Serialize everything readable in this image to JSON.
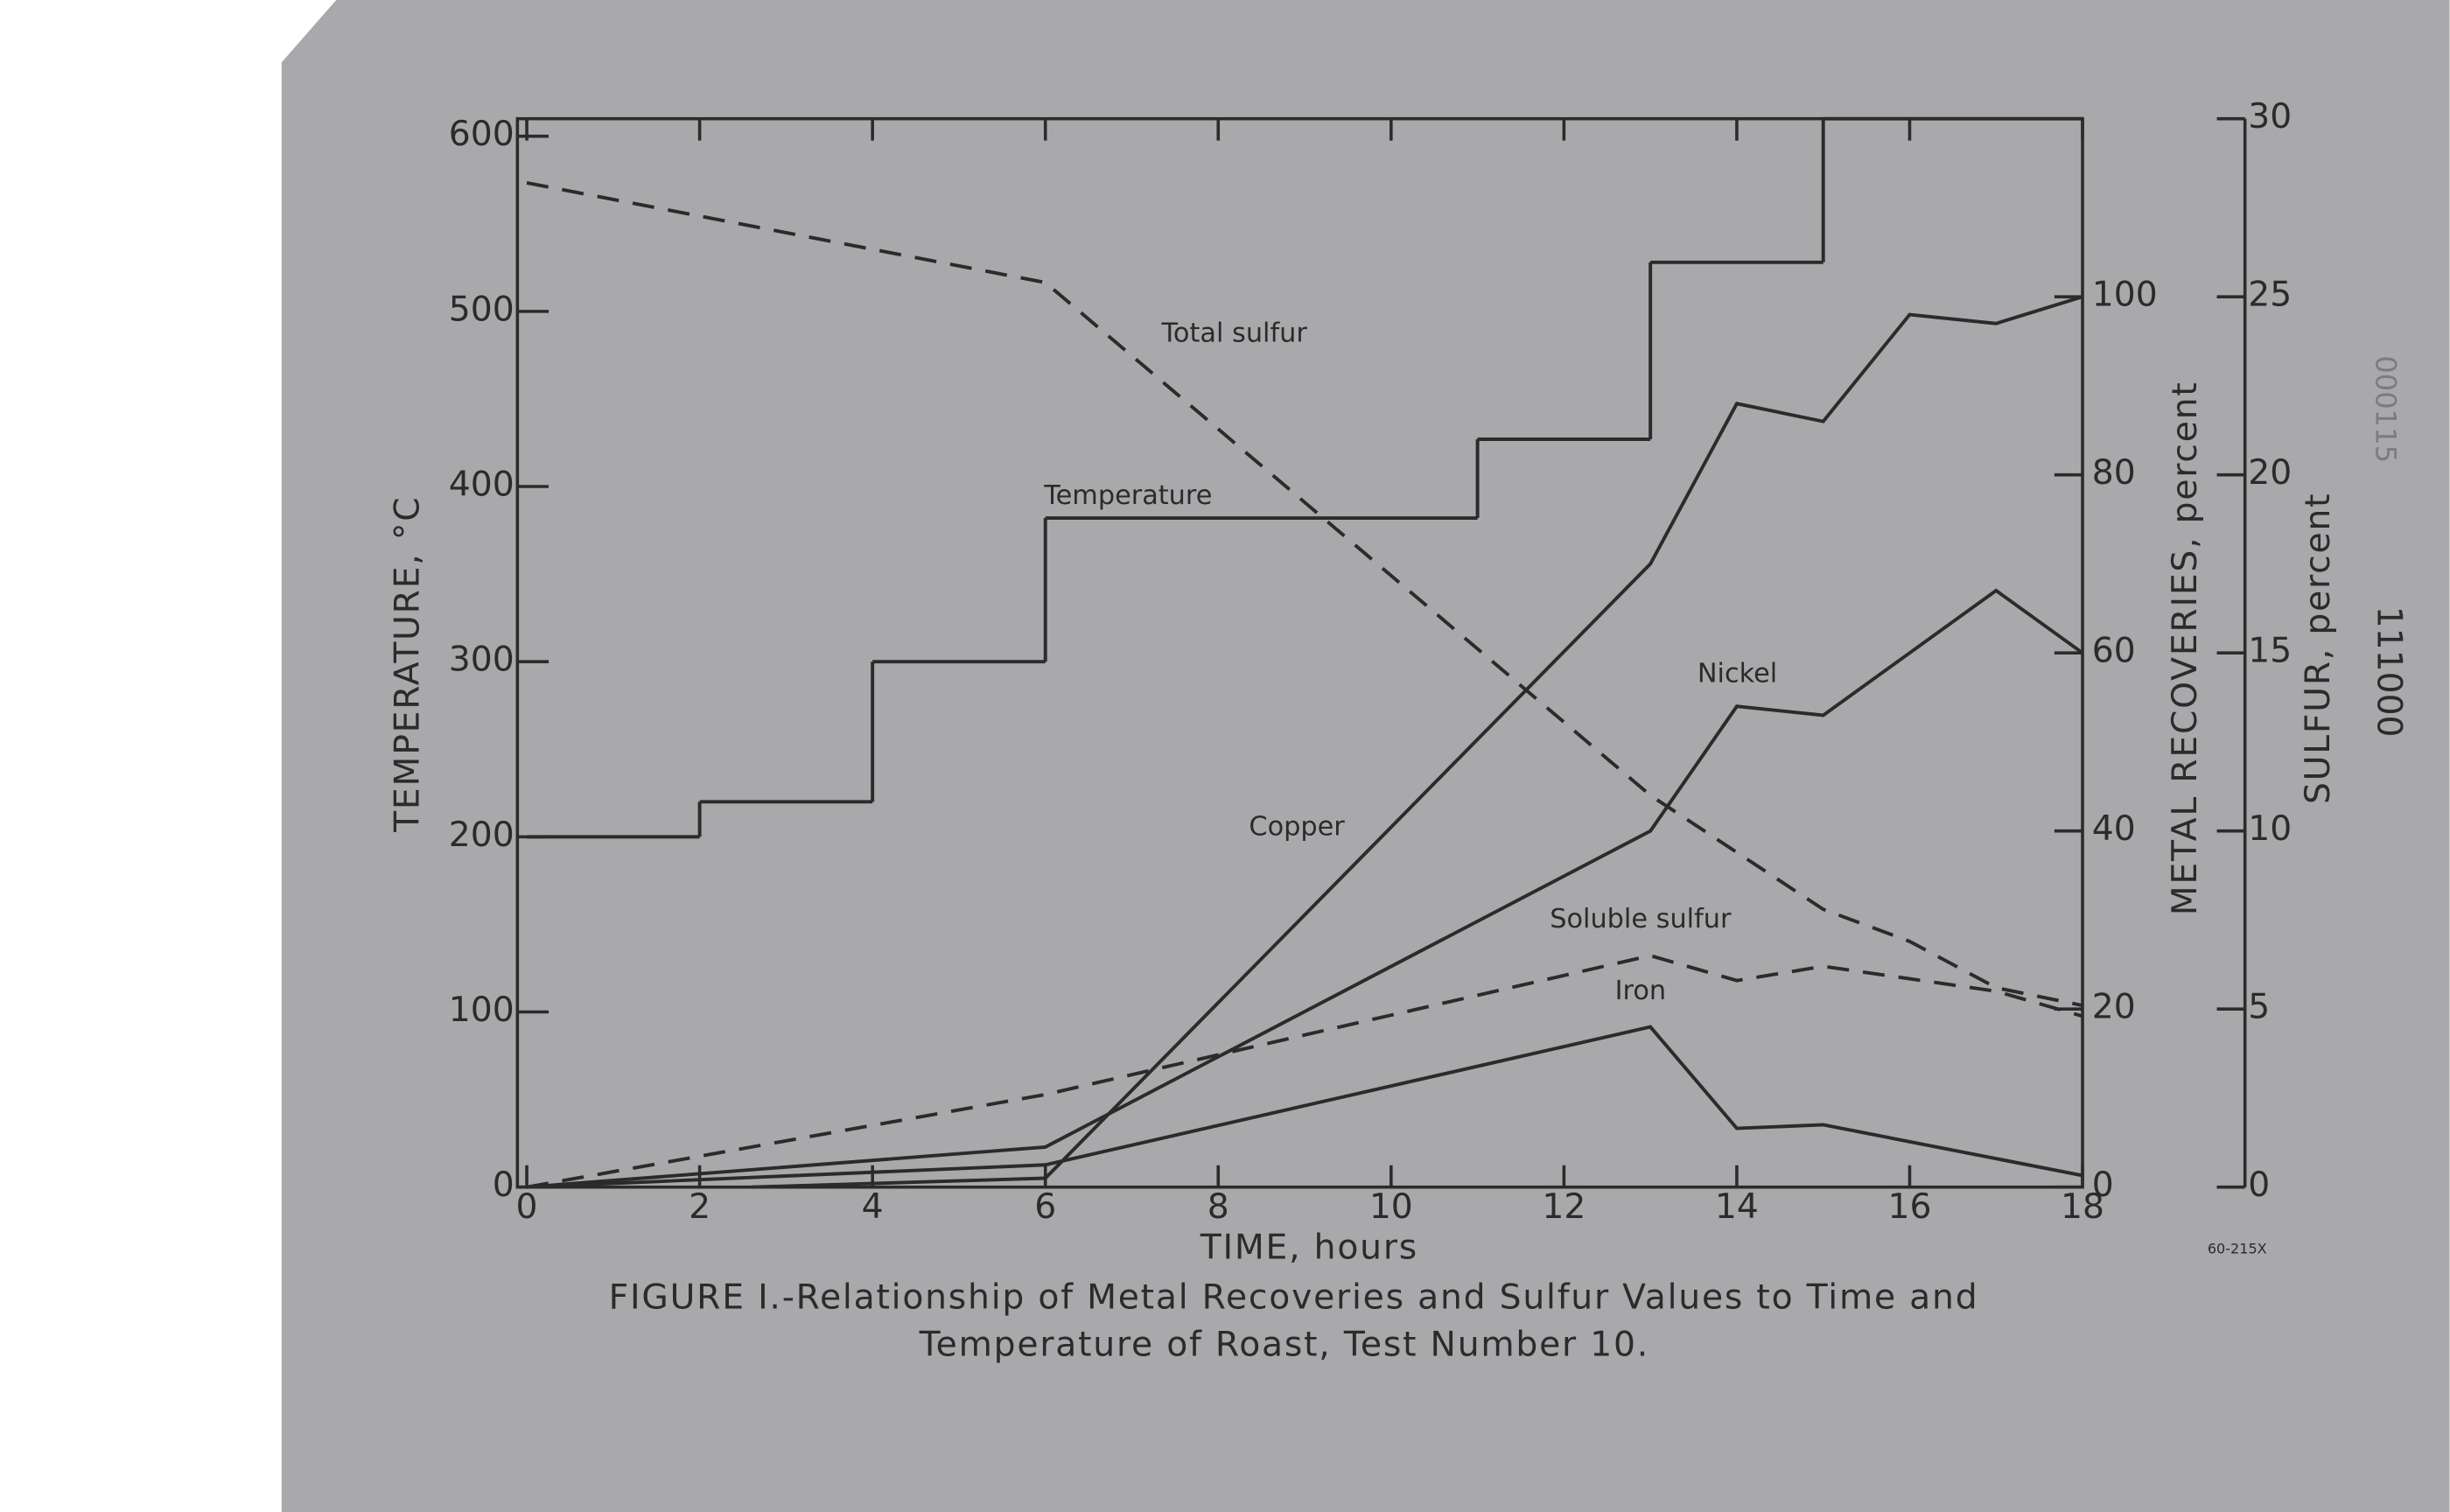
{
  "chart_data": {
    "type": "line",
    "title": [
      "FIGURE I.-Relationship of Metal Recoveries and Sulfur Values to Time and",
      "Temperature of Roast, Test Number 10."
    ],
    "x_label": "TIME, hours",
    "y_label": "TEMPERATURE, °C",
    "y2_label": "METAL RECOVERIES, percent",
    "y3_label": "SULFUR, percent",
    "xlim": [
      0,
      18
    ],
    "xticks": [
      0,
      2,
      4,
      6,
      8,
      10,
      12,
      14,
      16,
      18
    ],
    "ylim": [
      0,
      610
    ],
    "yticks": [
      0,
      100,
      200,
      300,
      400,
      500,
      600
    ],
    "y2lim": [
      0,
      120
    ],
    "y2ticks": [
      0,
      20,
      40,
      60,
      80,
      100
    ],
    "y3lim": [
      0,
      30
    ],
    "y3ticks": [
      0,
      5,
      10,
      15,
      20,
      25,
      30
    ],
    "series": [
      {
        "name": "Temperature",
        "color": "#2b2b2b",
        "axis": "y",
        "step": true,
        "bins": [
          0,
          2,
          4,
          6,
          11,
          13,
          15,
          18
        ],
        "values": [
          200,
          220,
          300,
          382,
          427,
          528,
          610
        ]
      },
      {
        "name": "Total sulfur",
        "color": "#2b2b2b",
        "axis": "y3",
        "dash": true,
        "x": [
          0,
          6,
          13,
          15,
          16,
          17,
          18
        ],
        "values": [
          28.2,
          25.4,
          11,
          7.8,
          6.9,
          5.6,
          5.1
        ]
      },
      {
        "name": "Soluble sulfur",
        "color": "#2b2b2b",
        "axis": "y3",
        "dash": true,
        "x": [
          0,
          6,
          13,
          14,
          15,
          17,
          18
        ],
        "values": [
          0,
          2.6,
          6.5,
          5.8,
          6.2,
          5.5,
          4.8
        ]
      },
      {
        "name": "Copper",
        "color": "#2b2b2b",
        "axis": "y2",
        "x": [
          2.6,
          6,
          13,
          14,
          15,
          16,
          17,
          18
        ],
        "values": [
          0,
          1,
          70,
          88,
          86,
          98,
          97,
          100
        ]
      },
      {
        "name": "Nickel",
        "color": "#2b2b2b",
        "axis": "y2",
        "x": [
          0,
          6,
          13,
          14,
          15,
          17,
          18
        ],
        "values": [
          0,
          4.5,
          40,
          54,
          53,
          67,
          60
        ]
      },
      {
        "name": "Iron",
        "color": "#2b2b2b",
        "axis": "y2",
        "x": [
          0,
          6,
          13,
          14,
          15,
          18
        ],
        "values": [
          0,
          2.5,
          18,
          6.6,
          7,
          1.3
        ]
      }
    ],
    "annotations": [
      "60-215X",
      "111000",
      "000115"
    ]
  }
}
